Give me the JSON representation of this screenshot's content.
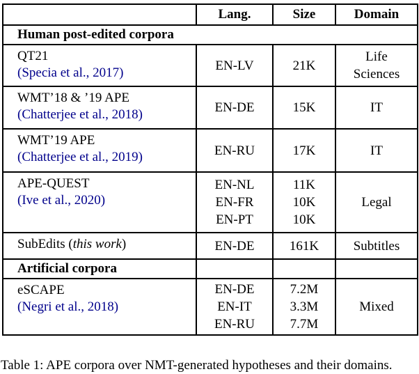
{
  "colors": {
    "citation_link": "#00008B",
    "text": "#000000",
    "border": "#000000",
    "background": "#ffffff"
  },
  "table": {
    "column_headers": [
      "",
      "Lang.",
      "Size",
      "Domain"
    ],
    "sections": [
      {
        "title": "Human post-edited corpora",
        "title_spans_full_width": true,
        "rows": [
          {
            "name": "QT21",
            "citation": "Specia et al., 2017",
            "langs": [
              "EN-LV"
            ],
            "sizes": [
              "21K"
            ],
            "domain": "Life Sciences",
            "domain_lines": [
              "Life",
              "Sciences"
            ]
          },
          {
            "name": "WMT’18 & ’19 APE",
            "citation": "Chatterjee et al., 2018",
            "langs": [
              "EN-DE"
            ],
            "sizes": [
              "15K"
            ],
            "domain": "IT",
            "domain_lines": [
              "IT"
            ]
          },
          {
            "name": "WMT’19 APE",
            "citation": "Chatterjee et al., 2019",
            "langs": [
              "EN-RU"
            ],
            "sizes": [
              "17K"
            ],
            "domain": "IT",
            "domain_lines": [
              "IT"
            ]
          },
          {
            "name": "APE-QUEST",
            "citation": "Ive et al., 2020",
            "langs": [
              "EN-NL",
              "EN-FR",
              "EN-PT"
            ],
            "sizes": [
              "11K",
              "10K",
              "10K"
            ],
            "domain": "Legal",
            "domain_lines": [
              "Legal"
            ]
          },
          {
            "name": "SubEdits",
            "note_italic": "this work",
            "langs": [
              "EN-DE"
            ],
            "sizes": [
              "161K"
            ],
            "domain": "Subtitles",
            "domain_lines": [
              "Subtitles"
            ]
          }
        ]
      },
      {
        "title": "Artificial corpora",
        "title_spans_full_width": false,
        "rows": [
          {
            "name": "eSCAPE",
            "citation": "Negri et al., 2018",
            "langs": [
              "EN-DE",
              "EN-IT",
              "EN-RU"
            ],
            "sizes": [
              "7.2M",
              "3.3M",
              "7.7M"
            ],
            "domain": "Mixed",
            "domain_lines": [
              "Mixed"
            ]
          }
        ]
      }
    ]
  },
  "caption": {
    "text": "Table 1: APE corpora over NMT-generated hypotheses and their domains."
  }
}
